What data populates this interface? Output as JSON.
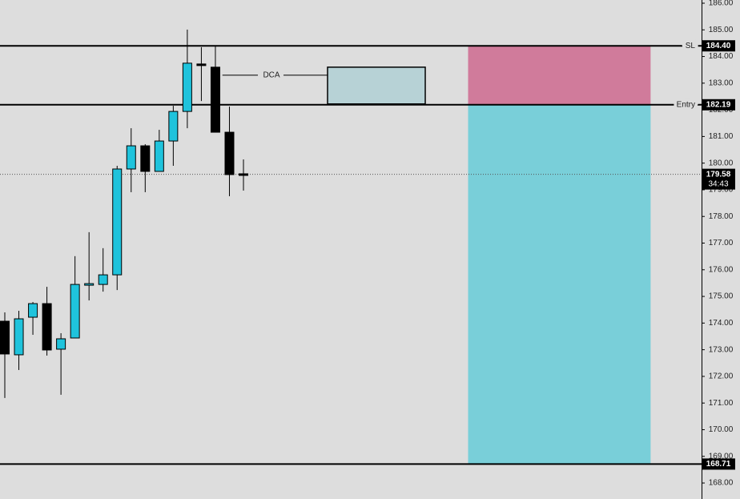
{
  "chart_data": {
    "type": "candlestick",
    "categories": [
      null,
      null,
      null,
      null,
      null,
      null,
      null,
      null,
      null,
      null,
      null,
      null,
      null,
      null,
      null,
      null,
      null,
      null
    ],
    "open": [
      174.07,
      172.81,
      174.22,
      174.73,
      173.02,
      173.44,
      175.42,
      175.45,
      175.81,
      179.78,
      180.65,
      179.69,
      180.83,
      181.94,
      183.72,
      183.6,
      181.16,
      179.6
    ],
    "high": [
      174.4,
      174.46,
      174.79,
      175.36,
      173.62,
      176.51,
      177.41,
      176.81,
      179.9,
      181.31,
      180.71,
      181.25,
      182.15,
      185.01,
      184.35,
      184.38,
      182.12,
      180.14
    ],
    "low": [
      171.19,
      172.24,
      173.56,
      172.78,
      171.31,
      173.44,
      174.85,
      175.18,
      175.24,
      178.91,
      178.91,
      179.69,
      179.9,
      181.31,
      182.33,
      181.16,
      178.76,
      178.97
    ],
    "close": [
      172.84,
      174.16,
      174.73,
      172.99,
      173.41,
      175.45,
      175.48,
      175.81,
      179.78,
      180.65,
      179.69,
      180.83,
      181.94,
      183.75,
      183.66,
      181.16,
      179.57,
      179.58
    ],
    "up_color": "#1fc3dc",
    "down_color": "#000000",
    "ylim": [
      167.4,
      186.12
    ],
    "yticks": [
      {
        "value": 168,
        "label": "168.00"
      },
      {
        "value": 169,
        "label": "169.00"
      },
      {
        "value": 170,
        "label": "170.00"
      },
      {
        "value": 171,
        "label": "171.00"
      },
      {
        "value": 172,
        "label": "172.00"
      },
      {
        "value": 173,
        "label": "173.00"
      },
      {
        "value": 174,
        "label": "174.00"
      },
      {
        "value": 175,
        "label": "175.00"
      },
      {
        "value": 176,
        "label": "176.00"
      },
      {
        "value": 177,
        "label": "177.00"
      },
      {
        "value": 178,
        "label": "178.00"
      },
      {
        "value": 179,
        "label": "179.00"
      },
      {
        "value": 180,
        "label": "180.00"
      },
      {
        "value": 181,
        "label": "181.00"
      },
      {
        "value": 182,
        "label": "182.00"
      },
      {
        "value": 183,
        "label": "183.00"
      },
      {
        "value": 184,
        "label": "184.00"
      },
      {
        "value": 185,
        "label": "185.00"
      },
      {
        "value": 186,
        "label": "186.00"
      }
    ],
    "price_lines": [
      {
        "name": "SL",
        "value": 184.4,
        "label": "184.40"
      },
      {
        "name": "Entry",
        "value": 182.19,
        "label": "182.19"
      },
      {
        "value": 168.71,
        "label": "168.71"
      }
    ],
    "current_price": {
      "value": 179.58,
      "label": "179.58",
      "countdown": "34:43"
    },
    "dca": {
      "text": "DCA",
      "low": 182.22,
      "high": 183.6,
      "level": 183.3
    },
    "stop_color": "#d07b9b",
    "target_color": "#79cfd9"
  }
}
